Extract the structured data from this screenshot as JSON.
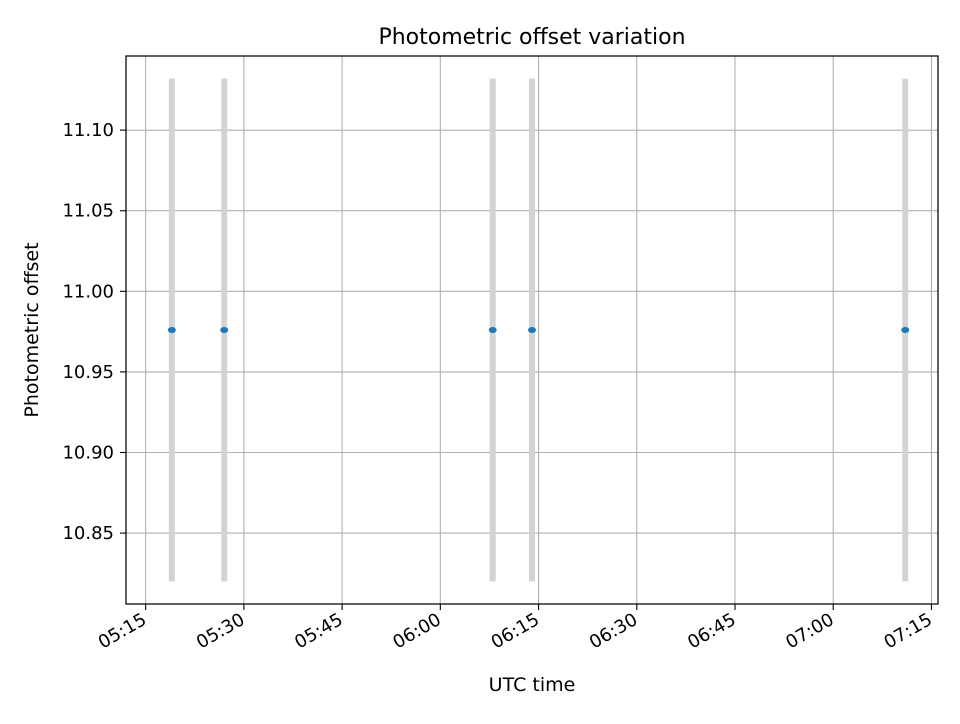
{
  "chart_data": {
    "type": "scatter",
    "title": "Photometric offset variation",
    "xlabel": "UTC time",
    "ylabel": "Photometric offset",
    "x_type": "time",
    "x": [
      "05:19",
      "05:27",
      "06:08",
      "06:14",
      "07:11"
    ],
    "y": [
      10.976,
      10.976,
      10.976,
      10.976,
      10.976
    ],
    "error_low": [
      10.82,
      10.82,
      10.82,
      10.82,
      10.82
    ],
    "error_high": [
      11.132,
      11.132,
      11.132,
      11.132,
      11.132
    ],
    "xlim": [
      "05:12",
      "07:16"
    ],
    "ylim": [
      10.806,
      11.146
    ],
    "xticks": [
      "05:15",
      "05:30",
      "05:45",
      "06:00",
      "06:15",
      "06:30",
      "06:45",
      "07:00",
      "07:15"
    ],
    "yticks": [
      10.85,
      10.9,
      10.95,
      11.0,
      11.05,
      11.1
    ],
    "ytick_labels": [
      "10.85",
      "10.90",
      "10.95",
      "11.00",
      "11.05",
      "11.10"
    ],
    "grid": true,
    "colors": {
      "marker": "#1f77b4",
      "error_bar": "#d3d3d3",
      "grid": "#b0b0b0",
      "axes": "#000000"
    }
  }
}
